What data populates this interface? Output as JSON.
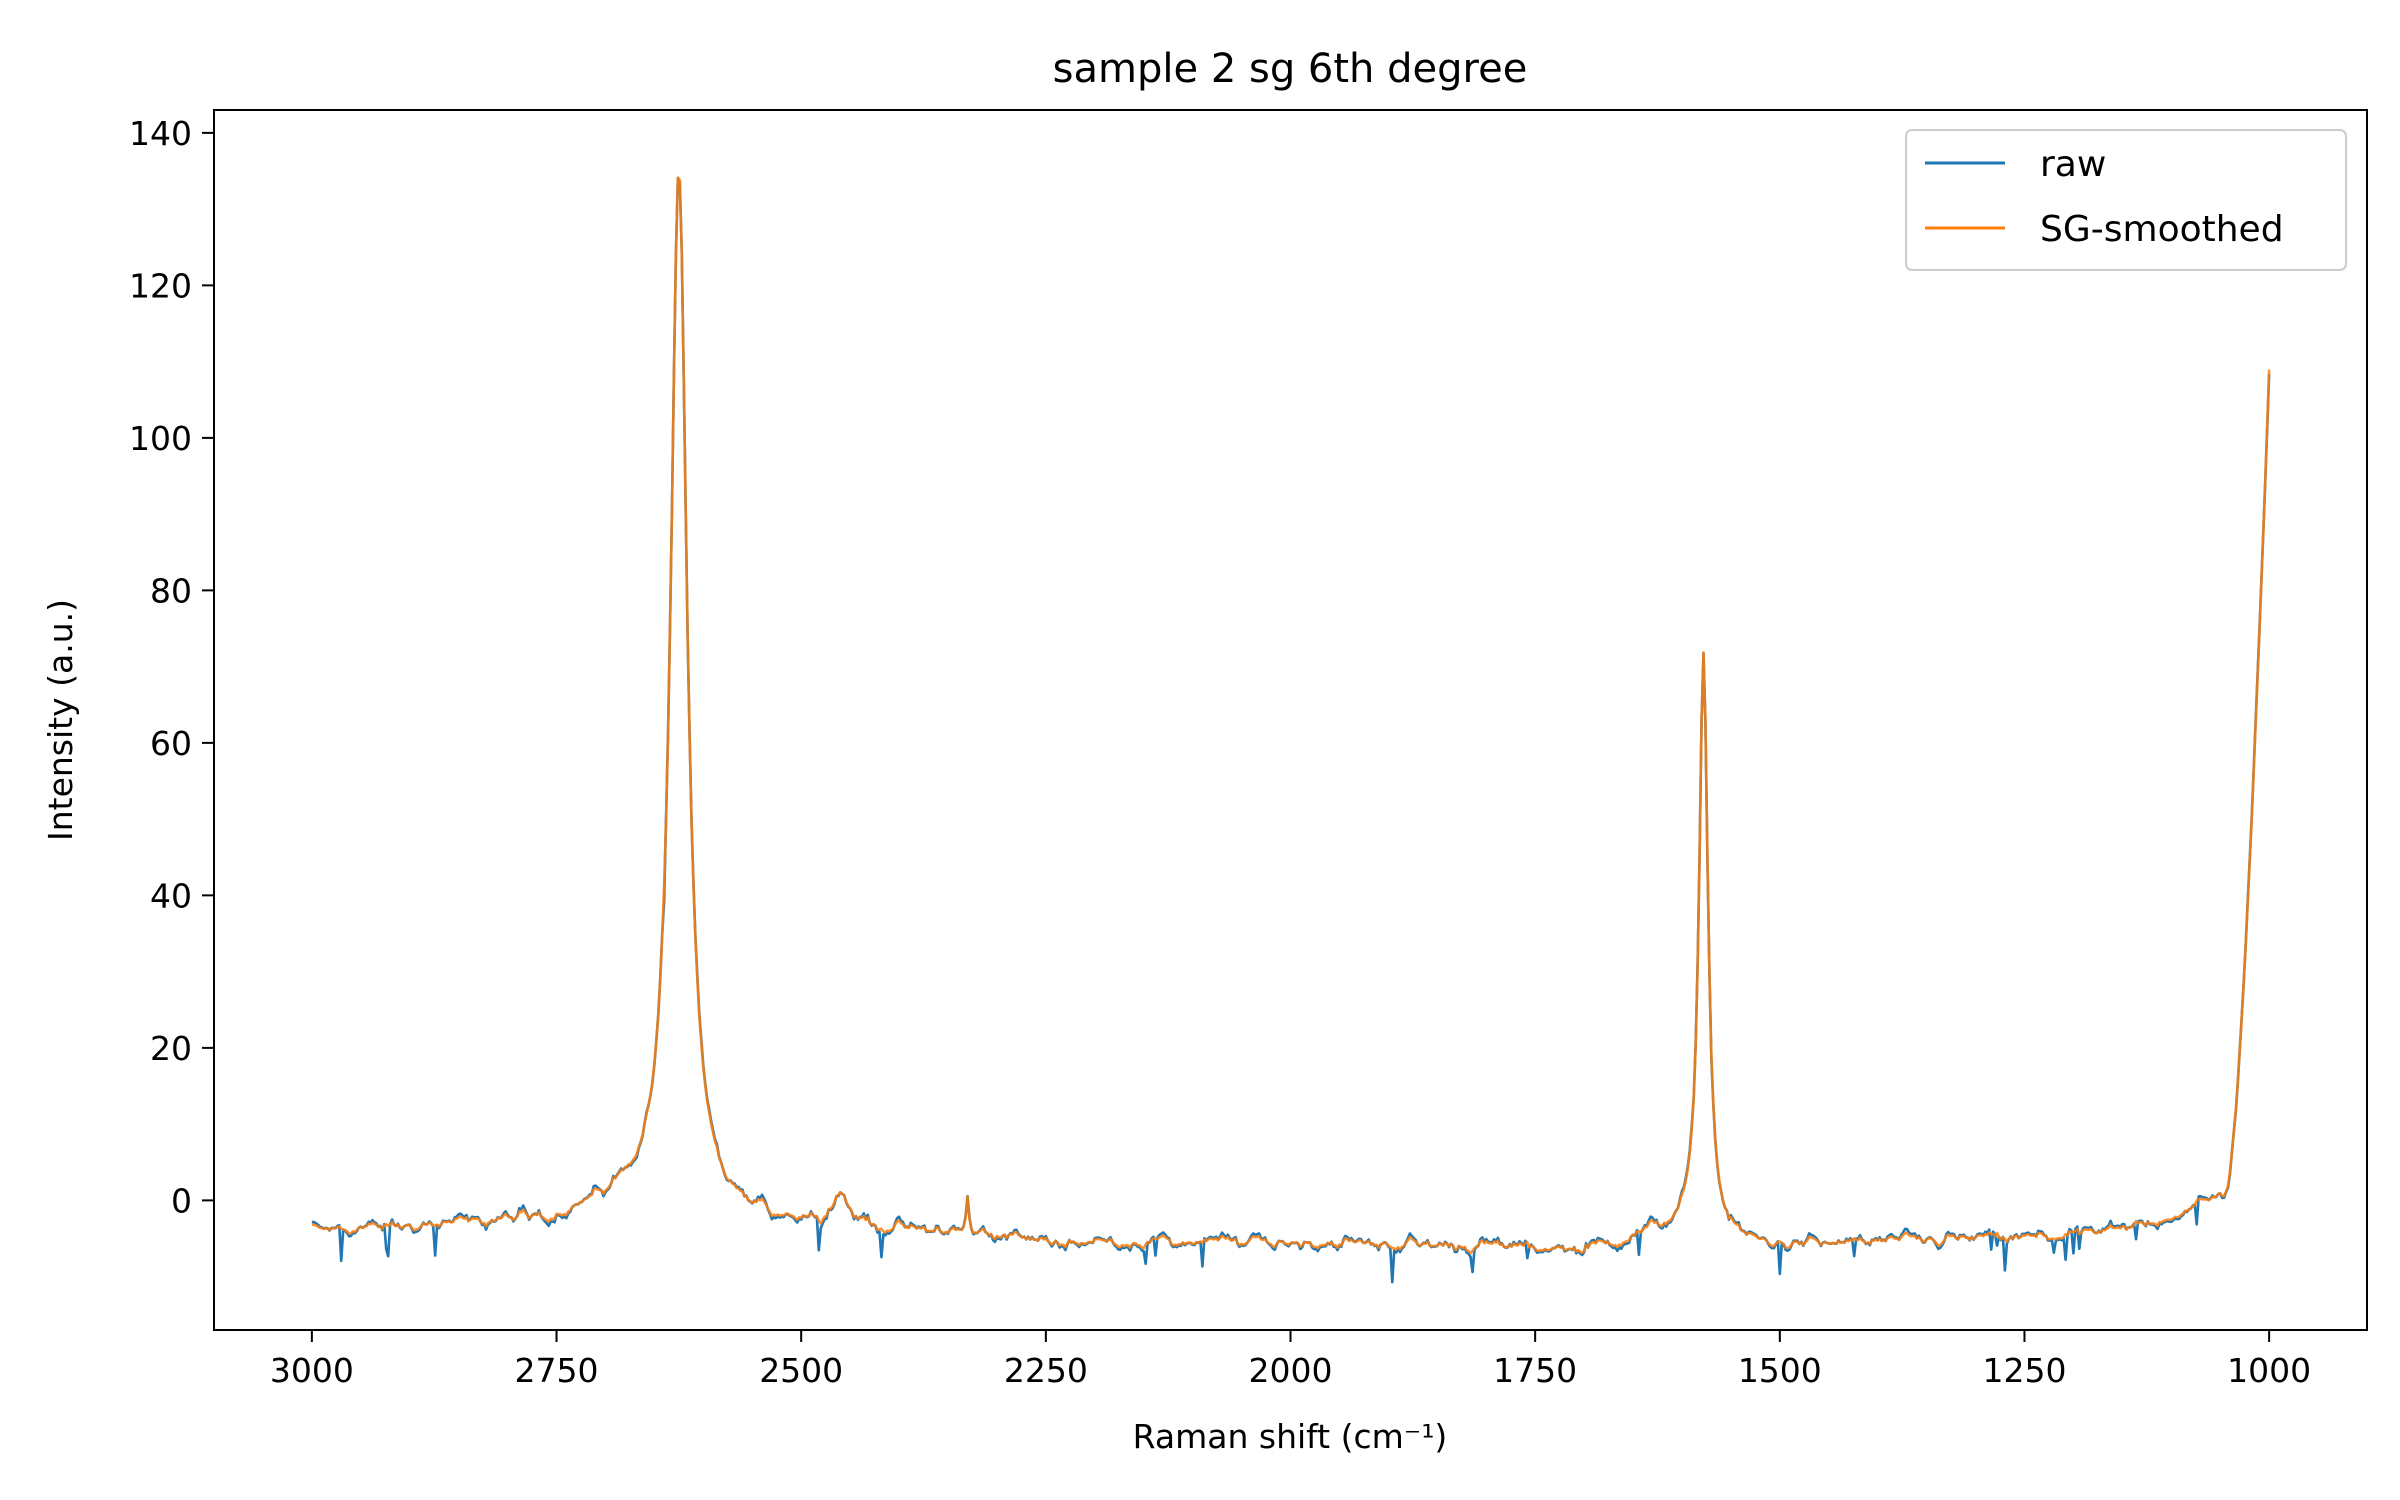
{
  "chart_data": {
    "type": "line",
    "title": "sample 2 sg 6th degree",
    "xlabel": "Raman shift (cm⁻¹)",
    "ylabel": "Intensity (a.u.)",
    "xlim": [
      3100,
      900
    ],
    "ylim": [
      -17,
      143
    ],
    "x_inverted": true,
    "grid": false,
    "legend_position": "top-right",
    "x_ticks": [
      3000,
      2750,
      2500,
      2250,
      2000,
      1750,
      1500,
      1250,
      1000
    ],
    "x_tick_labels": [
      "3000",
      "2750",
      "2500",
      "2250",
      "2000",
      "1750",
      "1500",
      "1250",
      "1000"
    ],
    "y_ticks": [
      0,
      20,
      40,
      60,
      80,
      100,
      120,
      140
    ],
    "y_tick_labels": [
      "0",
      "20",
      "40",
      "60",
      "80",
      "100",
      "120",
      "140"
    ],
    "x_range": [
      3000,
      1000
    ],
    "baseline_points": [
      [
        3000,
        -4
      ],
      [
        2900,
        -3.5
      ],
      [
        2750,
        -2.5
      ],
      [
        2680,
        0
      ],
      [
        2600,
        -2
      ],
      [
        2560,
        -2.5
      ],
      [
        2500,
        -3
      ],
      [
        2400,
        -4
      ],
      [
        2300,
        -4.5
      ],
      [
        2250,
        -5.5
      ],
      [
        2000,
        -5.5
      ],
      [
        1800,
        -6
      ],
      [
        1700,
        -6.5
      ],
      [
        1650,
        -5
      ],
      [
        1620,
        -4
      ],
      [
        1550,
        -5.5
      ],
      [
        1500,
        -6
      ],
      [
        1400,
        -5.5
      ],
      [
        1300,
        -5
      ],
      [
        1250,
        -5
      ],
      [
        1150,
        -4
      ],
      [
        1100,
        -2
      ],
      [
        1060,
        0
      ],
      [
        1050,
        1
      ]
    ],
    "peaks": [
      {
        "center": 2625,
        "height": 137,
        "width": 10
      },
      {
        "center": 2460,
        "height": 4,
        "width": 10
      },
      {
        "center": 2330,
        "height": 4.5,
        "width": 1.5
      },
      {
        "center": 1578,
        "height": 77,
        "width": 5.5
      }
    ],
    "edge_rise": {
      "start": 1045,
      "end": 1000,
      "end_value": 110
    },
    "series": [
      {
        "name": "raw",
        "color": "#1f77b4",
        "noise": 1.2,
        "spike_density": 0.03
      },
      {
        "name": "SG-smoothed",
        "color": "#ff7f0e",
        "noise": 0.8,
        "spike_density": 0.0
      }
    ]
  }
}
